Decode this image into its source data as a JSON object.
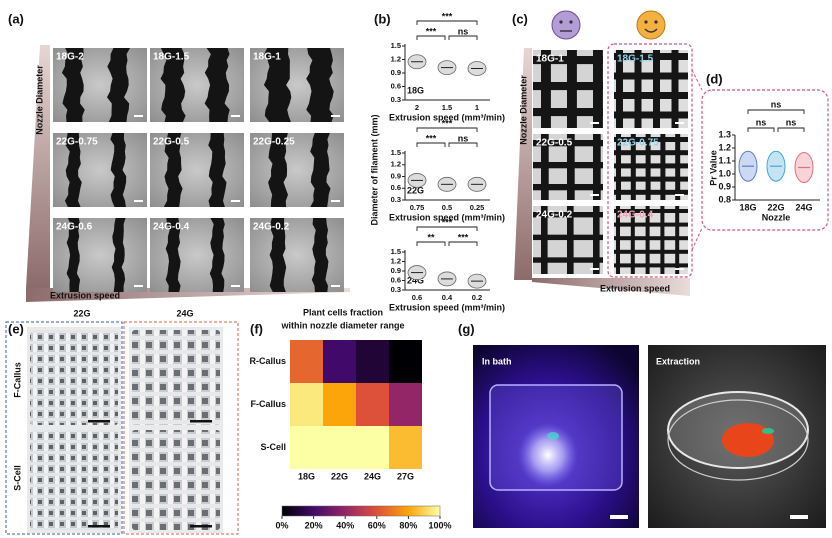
{
  "panel_a": {
    "label": "(a)",
    "axis_y": "Nozzle Diameter",
    "axis_x": "Extrusion speed",
    "images": [
      [
        "18G-2",
        "18G-1.5",
        "18G-1"
      ],
      [
        "22G-0.75",
        "22G-0.5",
        "22G-0.25"
      ],
      [
        "24G-0.6",
        "24G-0.4",
        "24G-0.2"
      ]
    ]
  },
  "panel_b": {
    "label": "(b)",
    "y_title": "Diameter of filament (mm)",
    "x_title": "Extrusion speed (mm³/min)",
    "color": "#666666",
    "plots": [
      {
        "gauge": "18G",
        "categories": [
          "2",
          "1.5",
          "1"
        ],
        "values": [
          1.15,
          1.02,
          1.0
        ],
        "ylim": [
          0.3,
          1.5
        ],
        "yticks": [
          0.3,
          0.6,
          0.9,
          1.2,
          1.5
        ],
        "significance": [
          "***",
          "***",
          "ns"
        ]
      },
      {
        "gauge": "22G",
        "categories": [
          "0.75",
          "0.5",
          "0.25"
        ],
        "values": [
          0.8,
          0.7,
          0.7
        ],
        "ylim": [
          0.3,
          1.5
        ],
        "yticks": [
          0.3,
          0.6,
          0.9,
          1.2,
          1.5
        ],
        "significance": [
          "***",
          "***",
          "ns"
        ]
      },
      {
        "gauge": "24G",
        "categories": [
          "0.6",
          "0.4",
          "0.2"
        ],
        "values": [
          0.85,
          0.65,
          0.58
        ],
        "ylim": [
          0.3,
          1.5
        ],
        "yticks": [
          0.3,
          0.6,
          0.9,
          1.2,
          1.5
        ],
        "significance": [
          "***",
          "**",
          "***"
        ]
      }
    ]
  },
  "panel_c": {
    "label": "(c)",
    "axis_y": "Nozzle Diameter",
    "axis_x": "Extrusion speed",
    "left": [
      "18G-1",
      "22G-0.5",
      "24G-0.2"
    ],
    "right": [
      "18G-1.5",
      "22G-0.75",
      "24G-0.4"
    ]
  },
  "panel_d": {
    "label": "(d)",
    "y_title": "Pr Value",
    "x_title": "Nozzle",
    "categories": [
      "18G",
      "22G",
      "24G"
    ],
    "values": [
      1.06,
      1.06,
      1.05
    ],
    "colors": [
      "#5b7fd1",
      "#3fa7d6",
      "#e0707a"
    ],
    "ylim": [
      0.8,
      1.3
    ],
    "yticks": [
      0.8,
      0.9,
      {
        "value": 1,
        "label": "1.0"
      },
      1.1,
      1.2,
      1.3
    ],
    "significance": [
      "ns",
      "ns",
      "ns"
    ]
  },
  "panel_e": {
    "label": "(e)",
    "columns": [
      "22G",
      "24G"
    ],
    "rows": [
      "F-Callus",
      "S-Cell"
    ]
  },
  "panel_f": {
    "label": "(f)",
    "title": [
      "Plant cells fraction",
      "within nozzle diameter range"
    ],
    "rows": [
      "R-Callus",
      "F-Callus",
      "S-Cell"
    ],
    "columns": [
      "18G",
      "22G",
      "24G",
      "27G"
    ],
    "values": [
      [
        65,
        20,
        10,
        0
      ],
      [
        95,
        80,
        60,
        40
      ],
      [
        100,
        100,
        100,
        85
      ]
    ],
    "clim": [
      0,
      100
    ],
    "colormap": [
      "#000004",
      "#420a68",
      "#932667",
      "#dd513a",
      "#fca50a",
      "#fcffa4"
    ],
    "colorbar_ticks": [
      {
        "value": 0,
        "label": "0%"
      },
      {
        "value": 20,
        "label": "20%"
      },
      {
        "value": 40,
        "label": "40%"
      },
      {
        "value": 60,
        "label": "60%"
      },
      {
        "value": 80,
        "label": "80%"
      },
      {
        "value": 100,
        "label": "100%"
      }
    ]
  },
  "panel_g": {
    "label": "(g)",
    "images": [
      "In bath",
      "Extraction"
    ]
  }
}
